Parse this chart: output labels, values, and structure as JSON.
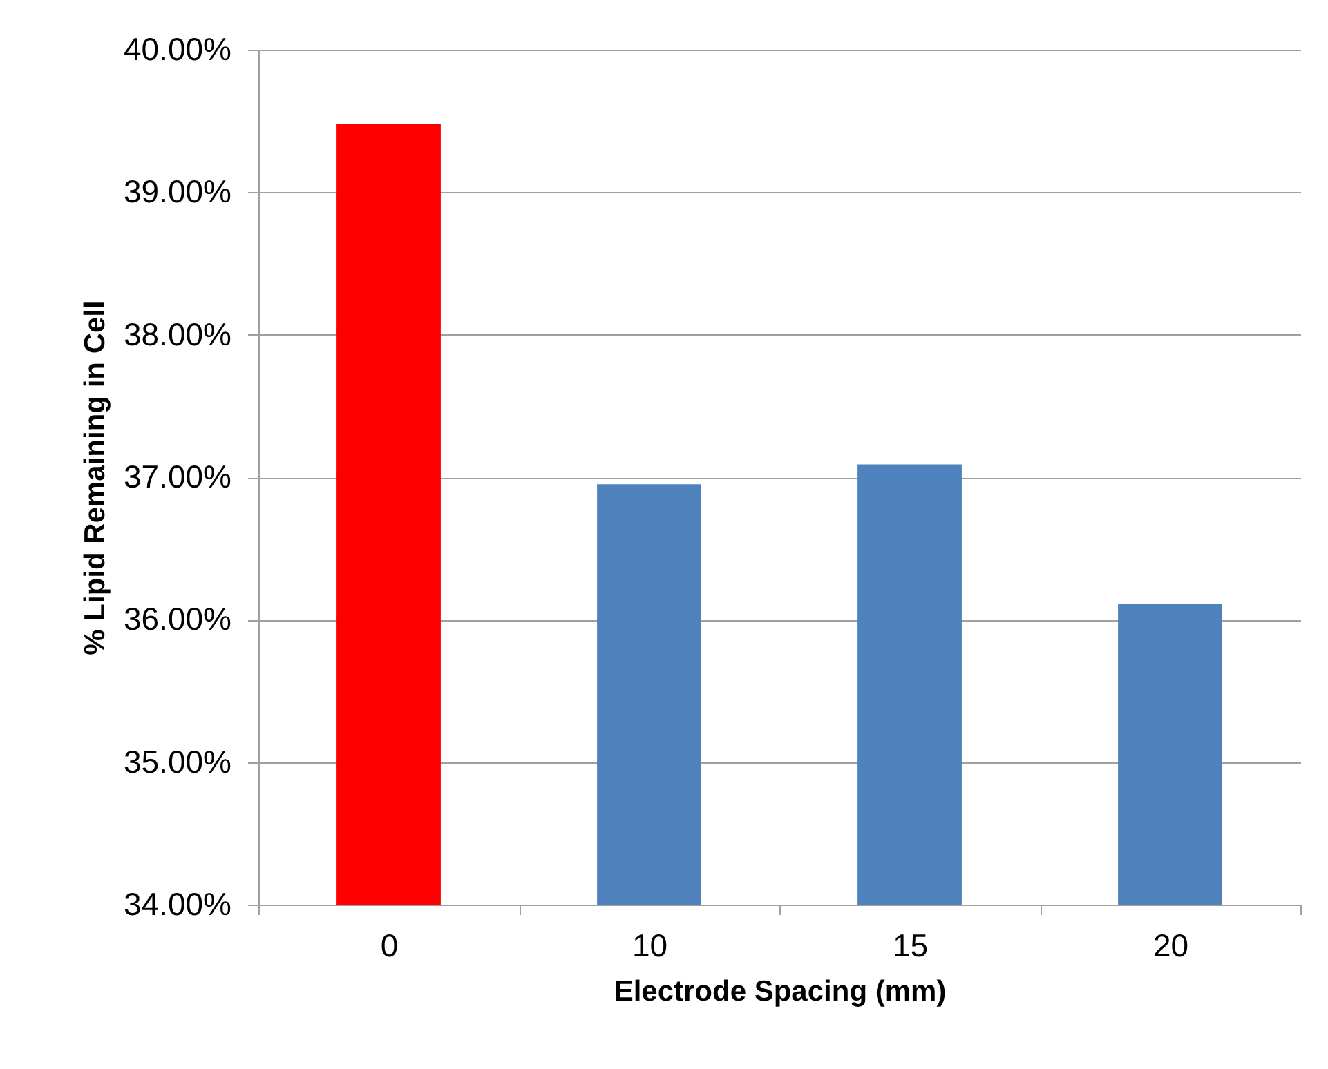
{
  "chart_data": {
    "type": "bar",
    "xlabel": "Electrode Spacing (mm)",
    "ylabel": "% Lipid Remaining in Cell",
    "categories": [
      "0",
      "10",
      "15",
      "20"
    ],
    "values": [
      39.48,
      36.95,
      37.09,
      36.11
    ],
    "colors": [
      "#ff0000",
      "#4f81bd",
      "#4f81bd",
      "#4f81bd"
    ],
    "ylim": [
      34,
      40
    ],
    "yticks": [
      {
        "value": 34,
        "label": "34.00%"
      },
      {
        "value": 35,
        "label": "35.00%"
      },
      {
        "value": 36,
        "label": "36.00%"
      },
      {
        "value": 37,
        "label": "37.00%"
      },
      {
        "value": 38,
        "label": "38.00%"
      },
      {
        "value": 39,
        "label": "39.00%"
      },
      {
        "value": 40,
        "label": "40.00%"
      }
    ],
    "grid": "y"
  }
}
